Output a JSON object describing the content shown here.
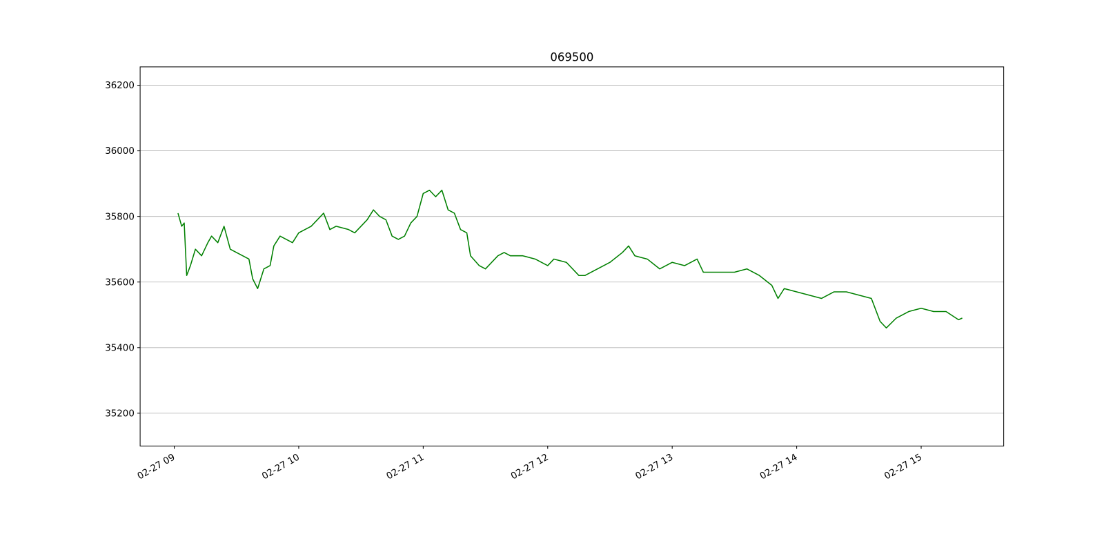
{
  "chart_data": {
    "type": "line",
    "title": "069500",
    "x": [
      9.03,
      9.06,
      9.08,
      9.1,
      9.13,
      9.17,
      9.22,
      9.27,
      9.3,
      9.35,
      9.4,
      9.45,
      9.5,
      9.55,
      9.6,
      9.63,
      9.67,
      9.72,
      9.77,
      9.8,
      9.85,
      9.9,
      9.95,
      10.0,
      10.05,
      10.1,
      10.15,
      10.2,
      10.25,
      10.3,
      10.4,
      10.45,
      10.55,
      10.6,
      10.65,
      10.7,
      10.75,
      10.8,
      10.85,
      10.9,
      10.95,
      11.0,
      11.05,
      11.1,
      11.15,
      11.2,
      11.25,
      11.3,
      11.35,
      11.38,
      11.45,
      11.5,
      11.55,
      11.6,
      11.65,
      11.7,
      11.8,
      11.9,
      12.0,
      12.05,
      12.15,
      12.25,
      12.3,
      12.4,
      12.5,
      12.6,
      12.65,
      12.7,
      12.8,
      12.9,
      13.0,
      13.1,
      13.2,
      13.25,
      13.35,
      13.5,
      13.6,
      13.7,
      13.8,
      13.85,
      13.9,
      14.0,
      14.1,
      14.2,
      14.3,
      14.4,
      14.5,
      14.6,
      14.67,
      14.72,
      14.8,
      14.9,
      15.0,
      15.1,
      15.2,
      15.3,
      15.33
    ],
    "series": [
      {
        "name": "069500",
        "color": "#008000",
        "values": [
          35810,
          35770,
          35780,
          35620,
          35650,
          35700,
          35680,
          35720,
          35740,
          35720,
          35770,
          35700,
          35690,
          35680,
          35670,
          35610,
          35580,
          35640,
          35650,
          35710,
          35740,
          35730,
          35720,
          35750,
          35760,
          35770,
          35790,
          35810,
          35760,
          35770,
          35760,
          35750,
          35790,
          35820,
          35800,
          35790,
          35740,
          35730,
          35740,
          35780,
          35800,
          35870,
          35880,
          35860,
          35880,
          35820,
          35810,
          35760,
          35750,
          35680,
          35650,
          35640,
          35660,
          35680,
          35690,
          35680,
          35680,
          35670,
          35650,
          35670,
          35660,
          35620,
          35620,
          35640,
          35660,
          35690,
          35710,
          35680,
          35670,
          35640,
          35660,
          35650,
          35670,
          35630,
          35630,
          35630,
          35640,
          35620,
          35590,
          35550,
          35580,
          35570,
          35560,
          35550,
          35570,
          35570,
          35560,
          35550,
          35480,
          35460,
          35490,
          35510,
          35520,
          35510,
          35510,
          35485,
          35490
        ]
      }
    ],
    "xlim": [
      8.726,
      15.663
    ],
    "xticks": [
      {
        "value": 9,
        "label": "02-27 09"
      },
      {
        "value": 10,
        "label": "02-27 10"
      },
      {
        "value": 11,
        "label": "02-27 11"
      },
      {
        "value": 12,
        "label": "02-27 12"
      },
      {
        "value": 13,
        "label": "02-27 13"
      },
      {
        "value": 14,
        "label": "02-27 14"
      },
      {
        "value": 15,
        "label": "02-27 15"
      }
    ],
    "ylim": [
      35100,
      36256
    ],
    "yticks": [
      35200,
      35400,
      35600,
      35800,
      36000,
      36200
    ],
    "grid": "y"
  }
}
